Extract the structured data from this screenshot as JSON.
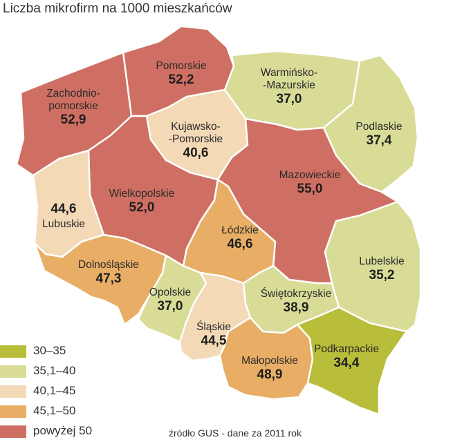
{
  "title": "Liczba mikrofirm na 1000 mieszkańców",
  "source": "źródło GUS - dane za 2011 rok",
  "colors": {
    "c30_35": "#b8bd3a",
    "c35_40": "#d8dc97",
    "c40_45": "#f4d9b7",
    "c45_50": "#e8ae66",
    "c50plus": "#cf6f63"
  },
  "legend": [
    {
      "label": "30–35",
      "color": "#b8bd3a"
    },
    {
      "label": "35,1–40",
      "color": "#d8dc97"
    },
    {
      "label": "40,1–45",
      "color": "#f4d9b7"
    },
    {
      "label": "45,1–50",
      "color": "#e8ae66"
    },
    {
      "label": "powyżej 50",
      "color": "#cf6f63"
    }
  ],
  "regions": [
    {
      "name_lines": [
        "Pomorskie"
      ],
      "value": "52,2",
      "color": "#cf6f63"
    },
    {
      "name_lines": [
        "Zachodnio-",
        "pomorskie"
      ],
      "value": "52,9",
      "color": "#cf6f63"
    },
    {
      "name_lines": [
        "Warmińsko-",
        "-Mazurskie"
      ],
      "value": "37,0",
      "color": "#d8dc97"
    },
    {
      "name_lines": [
        "Podlaskie"
      ],
      "value": "37,4",
      "color": "#d8dc97"
    },
    {
      "name_lines": [
        "Kujawsko-",
        "-Pomorskie"
      ],
      "value": "40,6",
      "color": "#f4d9b7"
    },
    {
      "name_lines": [
        "Mazowieckie"
      ],
      "value": "55,0",
      "color": "#cf6f63"
    },
    {
      "name_lines": [
        "Wielkopolskie"
      ],
      "value": "52,0",
      "color": "#cf6f63"
    },
    {
      "name_lines": [
        "Lubuskie"
      ],
      "value": "44,6",
      "color": "#f4d9b7"
    },
    {
      "name_lines": [
        "Łódzkie"
      ],
      "value": "46,6",
      "color": "#e8ae66"
    },
    {
      "name_lines": [
        "Lubelskie"
      ],
      "value": "35,2",
      "color": "#d8dc97"
    },
    {
      "name_lines": [
        "Dolnośląskie"
      ],
      "value": "47,3",
      "color": "#e8ae66"
    },
    {
      "name_lines": [
        "Opolskie"
      ],
      "value": "37,0",
      "color": "#d8dc97"
    },
    {
      "name_lines": [
        "Świętokrzyskie"
      ],
      "value": "38,9",
      "color": "#d8dc97"
    },
    {
      "name_lines": [
        "Śląskie"
      ],
      "value": "44,5",
      "color": "#f4d9b7"
    },
    {
      "name_lines": [
        "Małopolskie"
      ],
      "value": "48,9",
      "color": "#e8ae66"
    },
    {
      "name_lines": [
        "Podkarpackie"
      ],
      "value": "34,4",
      "color": "#b8bd3a"
    }
  ]
}
